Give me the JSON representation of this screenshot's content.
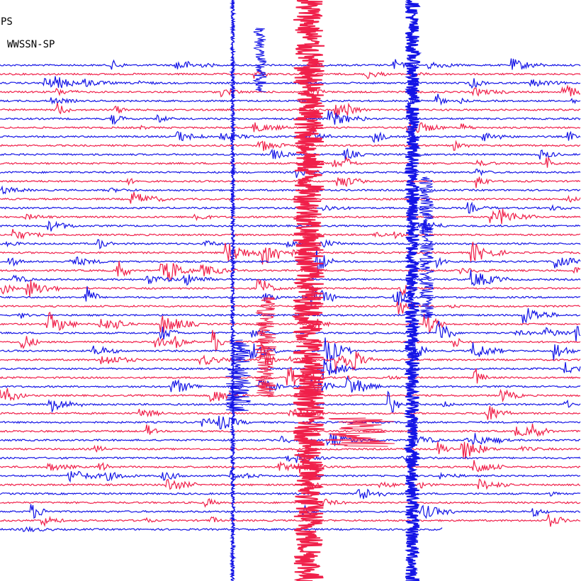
{
  "header": {
    "station": "PS",
    "network": "WWSSN-SP"
  }
}
